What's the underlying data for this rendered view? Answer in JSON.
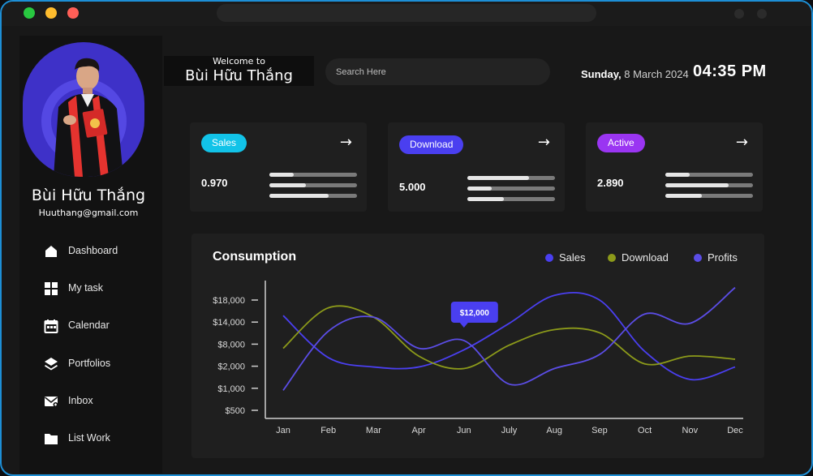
{
  "window": {
    "url_bar": ""
  },
  "profile": {
    "name": "Bùi Hữu Thắng",
    "email": "Huuthang@gmail.com"
  },
  "nav": [
    {
      "label": "Dashboard",
      "icon": "home-icon"
    },
    {
      "label": "My task",
      "icon": "grid-icon"
    },
    {
      "label": "Calendar",
      "icon": "calendar-icon"
    },
    {
      "label": "Portfolios",
      "icon": "layers-icon"
    },
    {
      "label": "Inbox",
      "icon": "mail-icon"
    },
    {
      "label": "List Work",
      "icon": "folder-icon"
    }
  ],
  "header": {
    "welcome": "Welcome to",
    "welcome_name": "Bùi Hữu Thắng",
    "search_placeholder": "Search Here",
    "day": "Sunday,",
    "date": "8 March 2024",
    "time": "04:35 PM"
  },
  "cards": [
    {
      "badge": "Sales",
      "color": "#12c3e8",
      "value": "0.970",
      "progress": [
        0.28,
        0.42,
        0.68
      ]
    },
    {
      "badge": "Download",
      "color": "#4a3ff0",
      "value": "5.000",
      "progress": [
        0.7,
        0.28,
        0.42
      ]
    },
    {
      "badge": "Active",
      "color": "#9a35f2",
      "value": "2.890",
      "progress": [
        0.28,
        0.72,
        0.42
      ]
    }
  ],
  "chart_data": {
    "type": "line",
    "title": "Consumption",
    "legend_position": "top-right",
    "categories": [
      "Jan",
      "Feb",
      "Mar",
      "Apr",
      "Jun",
      "July",
      "Aug",
      "Sep",
      "Oct",
      "Nov",
      "Dec"
    ],
    "y_ticks": [
      "$500",
      "$1,000",
      "$2,000",
      "$8,000",
      "$14,000",
      "$18,000"
    ],
    "series": [
      {
        "name": "Sales",
        "color": "#4a3ff0",
        "values": [
          6.5,
          3.8,
          3.2,
          3.2,
          4.3,
          6.0,
          7.8,
          7.5,
          4.2,
          2.4,
          3.2
        ]
      },
      {
        "name": "Download",
        "color": "#8c9a1a",
        "values": [
          4.4,
          7.0,
          6.4,
          3.9,
          3.1,
          4.6,
          5.6,
          5.4,
          3.4,
          3.9,
          3.7
        ]
      },
      {
        "name": "Profits",
        "color": "#5b4de6",
        "values": [
          1.7,
          5.5,
          6.4,
          4.4,
          4.9,
          2.1,
          3.1,
          4.0,
          6.6,
          6.0,
          8.3
        ]
      }
    ],
    "annotation": {
      "label": "$12,000",
      "category": "Jun"
    }
  }
}
